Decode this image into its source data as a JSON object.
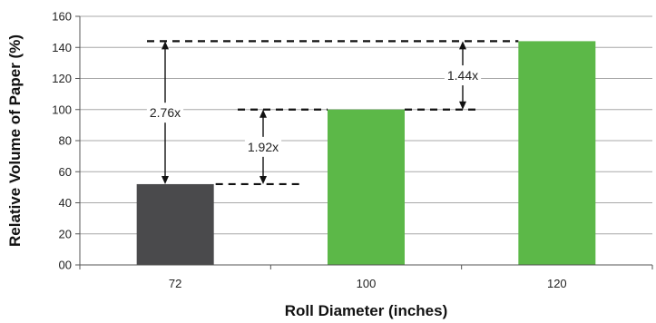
{
  "chart_data": {
    "type": "bar",
    "title": "",
    "xlabel": "Roll Diameter (inches)",
    "ylabel": "Relative Volume of Paper (%)",
    "categories": [
      "72",
      "100",
      "120"
    ],
    "values": [
      52,
      100,
      144
    ],
    "bar_colors": [
      "#4a4a4c",
      "#5cb848",
      "#5cb848"
    ],
    "ylim": [
      0,
      160
    ],
    "yticks": [
      "00",
      "20",
      "40",
      "60",
      "80",
      "100",
      "120",
      "140",
      "160"
    ],
    "grid": true,
    "legend": "none",
    "annotations": [
      {
        "label": "2.76x",
        "from_value": 52,
        "to_value": 144
      },
      {
        "label": "1.92x",
        "from_value": 52,
        "to_value": 100
      },
      {
        "label": "1.44x",
        "from_value": 100,
        "to_value": 144
      }
    ]
  }
}
